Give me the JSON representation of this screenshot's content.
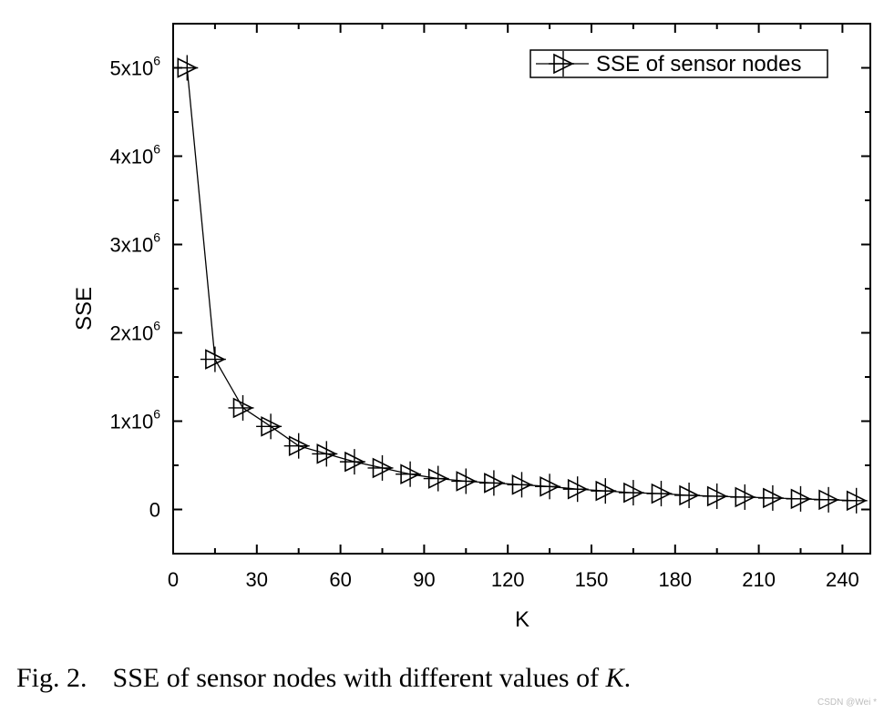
{
  "chart_data": {
    "type": "line",
    "xlabel": "K",
    "ylabel": "SSE",
    "xlim": [
      0,
      250
    ],
    "ylim": [
      -500000,
      5500000
    ],
    "xticks": [
      0,
      30,
      60,
      90,
      120,
      150,
      180,
      210,
      240
    ],
    "xtick_labels": [
      "0",
      "30",
      "60",
      "90",
      "120",
      "150",
      "180",
      "210",
      "240"
    ],
    "yticks": [
      0,
      1000000,
      2000000,
      3000000,
      4000000,
      5000000
    ],
    "ytick_labels": [
      {
        "mantissa": "0",
        "exp": ""
      },
      {
        "mantissa": "1x10",
        "exp": "6"
      },
      {
        "mantissa": "2x10",
        "exp": "6"
      },
      {
        "mantissa": "3x10",
        "exp": "6"
      },
      {
        "mantissa": "4x10",
        "exp": "6"
      },
      {
        "mantissa": "5x10",
        "exp": "6"
      }
    ],
    "legend": {
      "placement": "top-right",
      "marker": "triangle-right-with-cross"
    },
    "grid": false,
    "series": [
      {
        "name": "SSE of sensor nodes",
        "color": "#000000",
        "marker": "triangle-right-with-cross",
        "x": [
          5,
          15,
          25,
          35,
          45,
          55,
          65,
          75,
          85,
          95,
          105,
          115,
          125,
          135,
          145,
          155,
          165,
          175,
          185,
          195,
          205,
          215,
          225,
          235,
          245
        ],
        "y": [
          5000000,
          1700000,
          1150000,
          940000,
          720000,
          630000,
          540000,
          470000,
          400000,
          350000,
          320000,
          300000,
          280000,
          260000,
          230000,
          210000,
          190000,
          180000,
          160000,
          150000,
          140000,
          130000,
          120000,
          110000,
          100000
        ]
      }
    ]
  },
  "caption": {
    "label": "Fig. 2.",
    "text_before": "SSE of sensor nodes with different values of ",
    "text_italic": "K",
    "text_after": "."
  },
  "watermark": "CSDN @Wei *"
}
